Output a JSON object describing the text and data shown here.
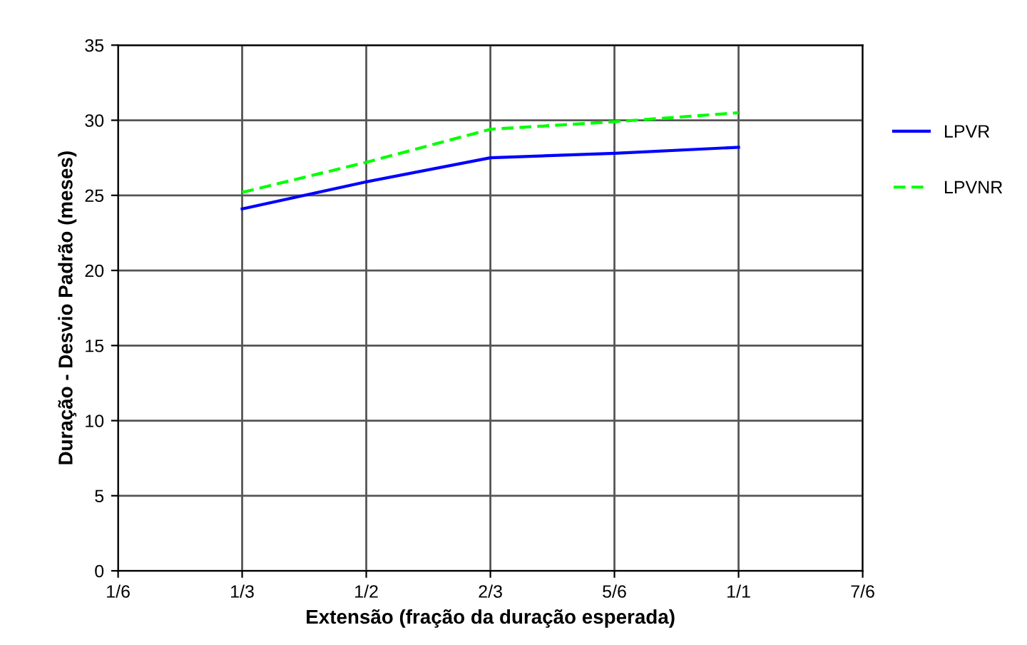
{
  "chart_data": {
    "type": "line",
    "xlabel": "Extensão (fração da duração esperada)",
    "ylabel": "Duração - Desvio Padrão (meses)",
    "x": [
      0.3333,
      0.5,
      0.6667,
      0.8333,
      1.0
    ],
    "series": [
      {
        "name": "LPVR",
        "color": "#0000ff",
        "line_style": "solid",
        "values": [
          24.1,
          25.9,
          27.5,
          27.8,
          28.2
        ]
      },
      {
        "name": "LPVNR",
        "color": "#00ff00",
        "line_style": "dashed",
        "values": [
          25.2,
          27.2,
          29.4,
          29.9,
          30.5
        ]
      }
    ],
    "xlim": [
      0.1667,
      1.1667
    ],
    "xticks": [
      {
        "value": 0.1667,
        "label": "1/6"
      },
      {
        "value": 0.3333,
        "label": "1/3"
      },
      {
        "value": 0.5,
        "label": "1/2"
      },
      {
        "value": 0.6667,
        "label": "2/3"
      },
      {
        "value": 0.8333,
        "label": "5/6"
      },
      {
        "value": 1.0,
        "label": "1/1"
      },
      {
        "value": 1.1667,
        "label": "7/6"
      }
    ],
    "ylim": [
      0,
      35
    ],
    "yticks": [
      0,
      5,
      10,
      15,
      20,
      25,
      30,
      35
    ],
    "grid": true,
    "legend": "right",
    "marker": "none"
  }
}
